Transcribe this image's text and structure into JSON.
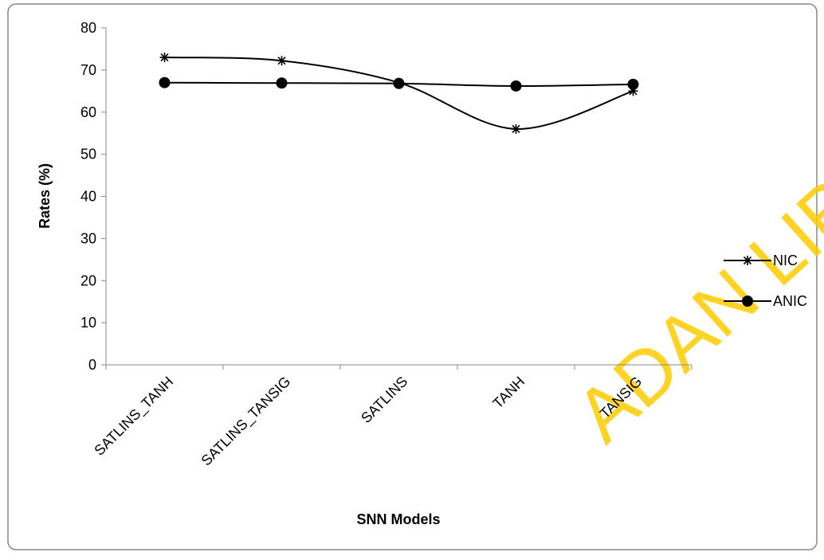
{
  "chart_data": {
    "type": "line",
    "categories": [
      "SATLINS_TANH",
      "SATLINS_TANSIG",
      "SATLINS",
      "TANH",
      "TANSIG"
    ],
    "series": [
      {
        "name": "NIC",
        "color": "#000000",
        "marker": "star",
        "values": [
          73,
          72.2,
          67,
          56,
          65
        ]
      },
      {
        "name": "ANIC",
        "color": "#000000",
        "marker": "circle",
        "values": [
          67,
          66.9,
          66.8,
          66.2,
          66.6
        ]
      }
    ],
    "ylim": [
      0,
      80
    ],
    "yticks": [
      0,
      10,
      20,
      30,
      40,
      50,
      60,
      70,
      80
    ],
    "ylabel": "Rates (%)",
    "xlabel": "SNN Models",
    "smooth": true,
    "grid": false,
    "legend": "right",
    "watermark": "ADAN LIBRARY"
  }
}
